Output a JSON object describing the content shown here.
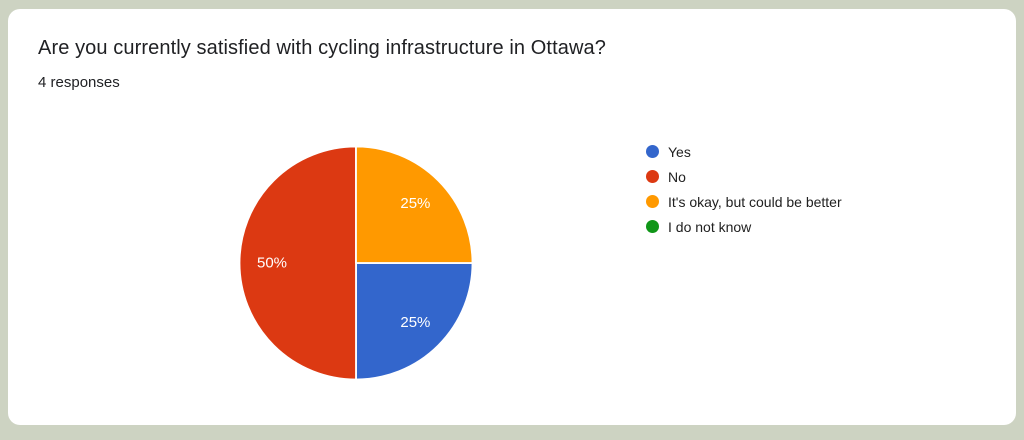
{
  "page": {
    "background_color": "#CDD3C2",
    "card_color": "#FFFFFF"
  },
  "header": {
    "title": "Are you currently satisfied with cycling infrastructure in Ottawa?",
    "responses_count": "4 responses"
  },
  "chart_data": {
    "type": "pie",
    "title": "Are you currently satisfied with cycling infrastructure in Ottawa?",
    "subtitle": "4 responses",
    "legend_position": "right",
    "label_color": "#FFFFFF",
    "slices": [
      {
        "label": "Yes",
        "percent": 25,
        "percent_label": "25%",
        "color": "#3366CC",
        "start_angle": 90,
        "end_angle": 180
      },
      {
        "label": "No",
        "percent": 50,
        "percent_label": "50%",
        "color": "#DC3912",
        "start_angle": 180,
        "end_angle": 360
      },
      {
        "label": "It's okay, but could be better",
        "percent": 25,
        "percent_label": "25%",
        "color": "#FF9900",
        "start_angle": 0,
        "end_angle": 90
      },
      {
        "label": "I do not know",
        "percent": 0,
        "percent_label": "",
        "color": "#109618",
        "start_angle": null,
        "end_angle": null
      }
    ]
  }
}
